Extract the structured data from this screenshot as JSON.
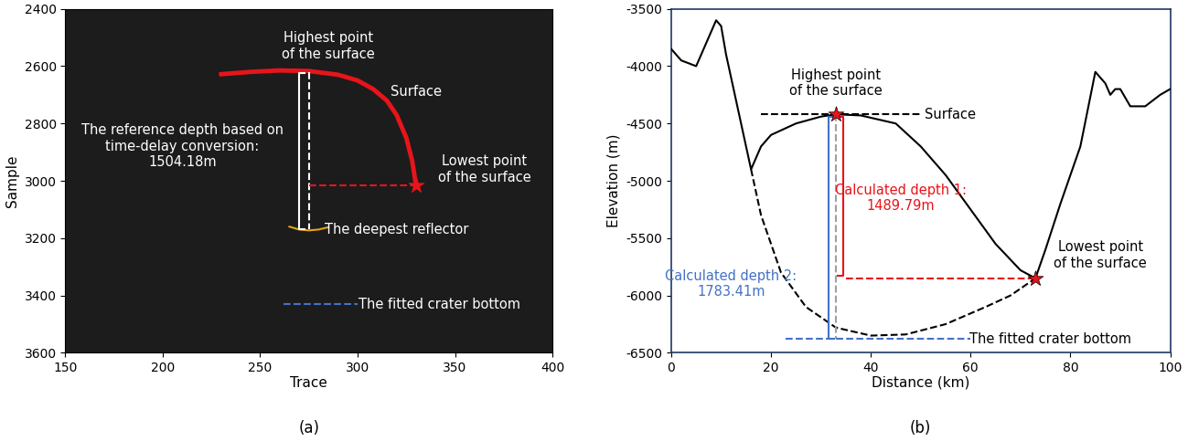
{
  "chart_data": [
    {
      "type": "radargram",
      "panel_label": "(a)",
      "xlabel": "Trace",
      "ylabel": "Sample",
      "xlim": [
        150,
        400
      ],
      "ylim": [
        3600,
        2400
      ],
      "xticks": [
        150,
        200,
        250,
        300,
        350,
        400
      ],
      "yticks": [
        2400,
        2600,
        2800,
        3000,
        3200,
        3400,
        3600
      ],
      "series": [
        {
          "type": "line",
          "color": "#e8141b",
          "line_style": "solid",
          "x": [
            230,
            245,
            260,
            275,
            290,
            300,
            308,
            315,
            320,
            325,
            328,
            330
          ],
          "values": [
            2628,
            2620,
            2615,
            2617,
            2630,
            2650,
            2680,
            2720,
            2770,
            2850,
            2930,
            3015
          ]
        },
        {
          "type": "line",
          "color": "#ffffff",
          "line_style": "dashed",
          "x": [
            275,
            275
          ],
          "values": [
            2620,
            3170
          ]
        },
        {
          "type": "line",
          "color": "#e8141b",
          "line_style": "dashed",
          "x": [
            275,
            330
          ],
          "values": [
            3015,
            3015
          ]
        },
        {
          "type": "line",
          "color": "#e8a317",
          "line_style": "solid",
          "x": [
            265,
            270,
            275,
            280,
            285
          ],
          "values": [
            3160,
            3170,
            3173,
            3170,
            3162
          ]
        },
        {
          "type": "line",
          "color": "#4472c4",
          "line_style": "dashed",
          "x": [
            262,
            300
          ],
          "values": [
            3430,
            3430
          ]
        },
        {
          "type": "scatter",
          "color": "#e8141b",
          "marker": "star",
          "x": [
            330
          ],
          "values": [
            3015
          ]
        }
      ],
      "brackets": [
        {
          "x": 270,
          "y": [
            2625,
            3170
          ],
          "color": "#ffffff",
          "side": "right"
        }
      ],
      "annotations": [
        {
          "text": "Highest point\nof the surface",
          "x": 285,
          "y": 2530,
          "color": "#ffffff"
        },
        {
          "text": "Surface",
          "x": 330,
          "y": 2690,
          "color": "#ffffff"
        },
        {
          "text": "The reference depth based on\ntime-delay conversion:\n1504.18m",
          "x": 210,
          "y": 2880,
          "color": "#ffffff"
        },
        {
          "text": "Lowest point\nof the surface",
          "x": 365,
          "y": 2960,
          "color": "#ffffff"
        },
        {
          "text": "The deepest reflector",
          "x": 320,
          "y": 3170,
          "color": "#ffffff"
        },
        {
          "text": "The fitted crater bottom",
          "x": 342,
          "y": 3430,
          "color": "#ffffff"
        }
      ]
    },
    {
      "type": "line",
      "panel_label": "(b)",
      "xlabel": "Distance (km)",
      "ylabel": "Elevation (m)",
      "xlim": [
        0,
        100
      ],
      "ylim": [
        -6500,
        -3500
      ],
      "xticks": [
        0,
        20,
        40,
        60,
        80,
        100
      ],
      "yticks": [
        -6500,
        -6000,
        -5500,
        -5000,
        -4500,
        -4000,
        -3500
      ],
      "series": [
        {
          "type": "line",
          "color": "#000000",
          "line_style": "solid",
          "x": [
            0,
            2,
            5,
            8,
            9,
            10,
            11,
            13,
            15,
            16,
            18,
            20,
            25,
            30,
            33,
            38,
            45,
            50,
            55,
            60,
            65,
            70,
            73,
            75,
            78,
            82,
            85,
            87,
            88,
            89,
            90,
            92,
            95,
            98,
            100
          ],
          "values": [
            -3850,
            -3950,
            -4000,
            -3700,
            -3600,
            -3650,
            -3900,
            -4300,
            -4700,
            -4900,
            -4700,
            -4600,
            -4500,
            -4440,
            -4420,
            -4430,
            -4500,
            -4700,
            -4950,
            -5250,
            -5550,
            -5780,
            -5850,
            -5600,
            -5200,
            -4700,
            -4050,
            -4150,
            -4250,
            -4200,
            -4200,
            -4350,
            -4350,
            -4250,
            -4200
          ]
        },
        {
          "type": "line",
          "color": "#000000",
          "line_style": "dashed",
          "x": [
            16,
            18,
            22,
            27,
            33,
            40,
            47,
            55,
            63,
            68,
            73
          ],
          "values": [
            -4900,
            -5300,
            -5800,
            -6100,
            -6280,
            -6350,
            -6340,
            -6250,
            -6100,
            -6000,
            -5850
          ]
        },
        {
          "type": "line",
          "color": "#000000",
          "line_style": "dashed",
          "x": [
            18,
            50
          ],
          "values": [
            -4420,
            -4420
          ]
        },
        {
          "type": "line",
          "color": "#a0a0a0",
          "line_style": "dashed",
          "x": [
            33,
            33
          ],
          "values": [
            -4420,
            -6380
          ]
        },
        {
          "type": "line",
          "color": "#e8141b",
          "line_style": "dashed",
          "x": [
            35,
            73
          ],
          "values": [
            -5850,
            -5850
          ]
        },
        {
          "type": "line",
          "color": "#4472c4",
          "line_style": "dashed",
          "x": [
            23,
            60
          ],
          "values": [
            -6380,
            -6380
          ]
        },
        {
          "type": "scatter",
          "color": "#e8141b",
          "marker": "star",
          "x": [
            33,
            73
          ],
          "values": [
            -4420,
            -5850
          ]
        }
      ],
      "brackets": [
        {
          "x": 34.5,
          "y": [
            -4440,
            -5830
          ],
          "color": "#e8141b",
          "side": "left"
        },
        {
          "x": 31.5,
          "y": [
            -4440,
            -6380
          ],
          "color": "#4472c4",
          "side": "right"
        }
      ],
      "annotations": [
        {
          "text": "Highest point\nof the surface",
          "x": 33,
          "y": -4150,
          "color": "#000000"
        },
        {
          "text": "Surface",
          "x": 56,
          "y": -4420,
          "color": "#000000"
        },
        {
          "text": "Calculated depth 1:\n1489.79m",
          "x": 46,
          "y": -5150,
          "color": "#e8141b"
        },
        {
          "text": "Calculated depth 2:\n1783.41m",
          "x": 12,
          "y": -5900,
          "color": "#4472c4"
        },
        {
          "text": "Lowest point\nof the surface",
          "x": 86,
          "y": -5650,
          "color": "#000000"
        },
        {
          "text": "The fitted crater bottom",
          "x": 76,
          "y": -6380,
          "color": "#000000"
        }
      ]
    }
  ]
}
